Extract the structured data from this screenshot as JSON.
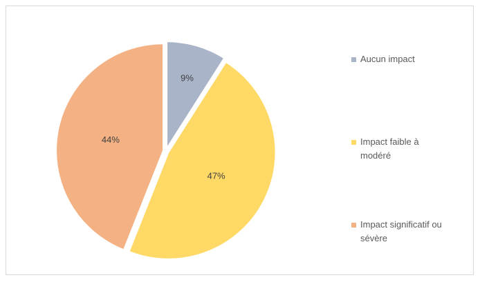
{
  "chart_data": {
    "type": "pie",
    "categories": [
      "Aucun impact",
      "Impact faible à modéré",
      "Impact significatif ou sévère"
    ],
    "values": [
      9,
      47,
      44
    ],
    "value_labels": [
      "9%",
      "47%",
      "44%"
    ],
    "colors": [
      "#a9b4c8",
      "#ffd966",
      "#f4b183"
    ],
    "legend": "right"
  }
}
